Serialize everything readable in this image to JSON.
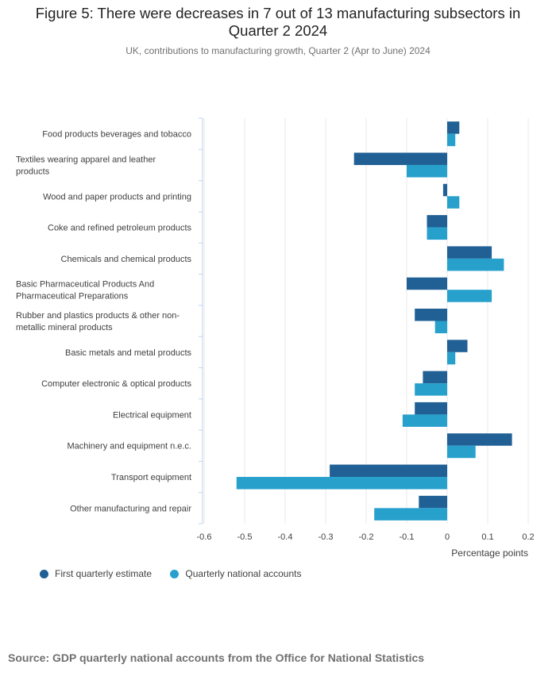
{
  "title_lines": [
    "Figure 5: There were decreases in 7 out of 13 manufacturing subsectors in",
    "Quarter 2 2024"
  ],
  "subtitle": "UK, contributions to manufacturing growth, Quarter 2 (Apr to June) 2024",
  "source": "Source: GDP quarterly national accounts from the Office for National Statistics",
  "colors": {
    "first_estimate": "#206095",
    "national_accounts": "#27a0cc",
    "grid": "#e8e8e8",
    "axis": "#bcd5ea"
  },
  "chart_data": {
    "type": "bar",
    "orientation": "horizontal",
    "categories": [
      [
        "Food products beverages and tobacco"
      ],
      [
        "Textiles wearing apparel and leather",
        "products"
      ],
      [
        "Wood and paper products and printing"
      ],
      [
        "Coke and refined petroleum products"
      ],
      [
        "Chemicals and chemical products"
      ],
      [
        "Basic Pharmaceutical Products And",
        "Pharmaceutical Preparations"
      ],
      [
        "Rubber and plastics products & other non-",
        "metallic mineral products"
      ],
      [
        "Basic metals and metal products"
      ],
      [
        "Computer electronic & optical products"
      ],
      [
        "Electrical equipment"
      ],
      [
        "Machinery and equipment n.e.c."
      ],
      [
        "Transport equipment"
      ],
      [
        "Other manufacturing and repair"
      ]
    ],
    "series": [
      {
        "name": "First quarterly estimate",
        "values": [
          0.03,
          -0.23,
          -0.01,
          -0.05,
          0.11,
          -0.1,
          -0.08,
          0.05,
          -0.06,
          -0.08,
          0.16,
          -0.29,
          -0.07
        ]
      },
      {
        "name": "Quarterly national accounts",
        "values": [
          0.02,
          -0.1,
          0.03,
          -0.05,
          0.14,
          0.11,
          -0.03,
          0.02,
          -0.08,
          -0.11,
          0.07,
          -0.52,
          -0.18
        ]
      }
    ],
    "xlim": [
      -0.6,
      0.2
    ],
    "xticks": [
      -0.6,
      -0.5,
      -0.4,
      -0.3,
      -0.2,
      -0.1,
      0,
      0.1,
      0.2
    ],
    "xtick_labels": [
      "-0.6",
      "-0.5",
      "-0.4",
      "-0.3",
      "-0.2",
      "-0.1",
      "0",
      "0.1",
      "0.2"
    ],
    "xlabel": "Percentage points",
    "grid": true,
    "legend_position": "bottom-left"
  }
}
